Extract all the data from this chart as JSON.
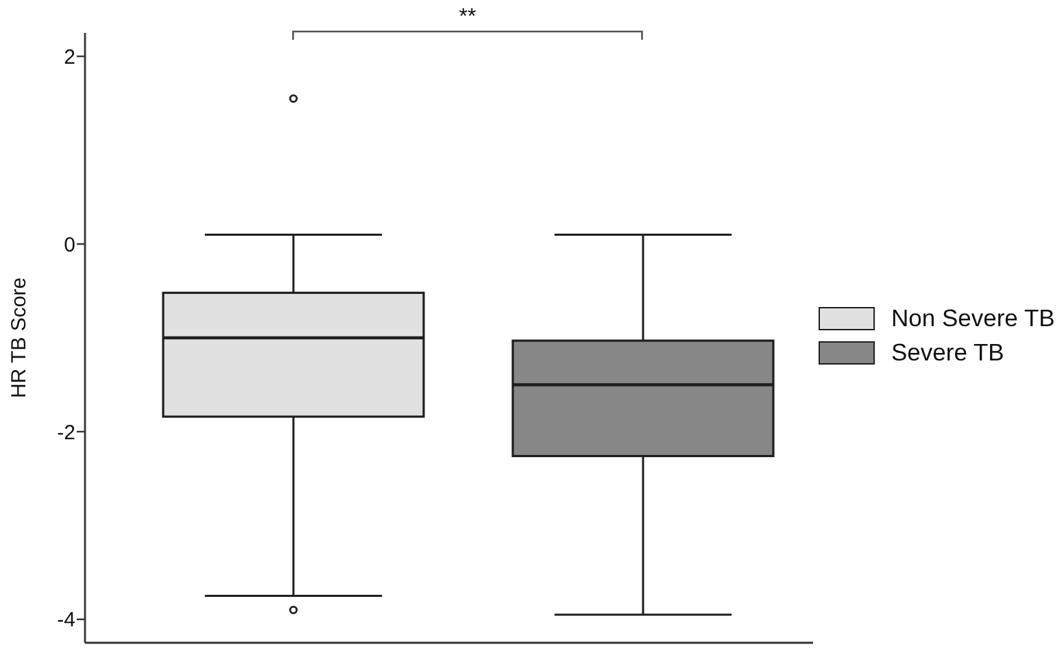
{
  "chart_data": {
    "type": "box",
    "categories": [
      null
    ],
    "series": [
      {
        "name": "Non Severe TB",
        "color": "#e1e1e1",
        "boxes": [
          {
            "low": -3.75,
            "q1": -1.84,
            "median": -1.0,
            "q3": -0.52,
            "high": 0.1,
            "outliers": [
              1.55,
              -3.9
            ]
          }
        ]
      },
      {
        "name": "Severe TB",
        "color": "#878787",
        "boxes": [
          {
            "low": -3.95,
            "q1": -2.26,
            "median": -1.5,
            "q3": -1.03,
            "high": 0.1
          }
        ]
      }
    ],
    "ylabel": "HR TB Score",
    "ylim": [
      -4.25,
      2.25
    ],
    "yticks": [
      -4,
      -2,
      0,
      2
    ],
    "annotations": [
      "**"
    ],
    "legend": "right",
    "tick_labels": "y"
  }
}
